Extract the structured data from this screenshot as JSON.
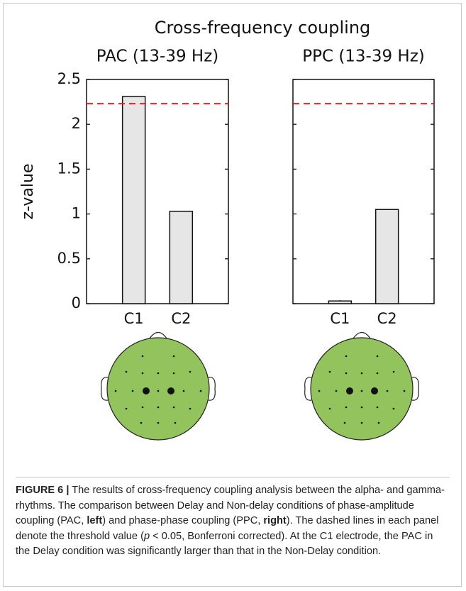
{
  "figure_title": "Cross-frequency coupling",
  "chart_data": [
    {
      "type": "bar",
      "title": "PAC (13-39 Hz)",
      "y_label": "z-value",
      "categories": [
        "C1",
        "C2"
      ],
      "values": [
        2.31,
        1.03
      ],
      "color": "#e6e6e6",
      "threshold": 2.23,
      "threshold_color": "#e8221e",
      "ylim": [
        0,
        2.5
      ],
      "yticks": [
        0,
        0.5,
        1,
        1.5,
        2,
        2.5
      ],
      "show_ytick_labels": true
    },
    {
      "type": "bar",
      "title": "PPC (13-39 Hz)",
      "categories": [
        "C1",
        "C2"
      ],
      "values": [
        0.03,
        1.05
      ],
      "color": "#e6e6e6",
      "threshold": 2.23,
      "threshold_color": "#e8221e",
      "ylim": [
        0,
        2.5
      ],
      "yticks": [
        0,
        0.5,
        1,
        1.5,
        2,
        2.5
      ],
      "show_ytick_labels": false
    }
  ],
  "caption": {
    "label": "FIGURE 6 |",
    "parts": [
      " The results of cross-frequency coupling analysis between the alpha- and gamma-rhythms. The comparison between Delay and Non-delay conditions of phase-amplitude coupling (PAC, ",
      "left",
      ") and phase-phase coupling (PPC, ",
      "right",
      "). The dashed lines in each panel denote the threshold value (",
      "p",
      " < 0.05, Bonferroni corrected). At the C1 electrode, the PAC in the Delay condition was significantly larger than that in the Non-Delay condition."
    ]
  }
}
